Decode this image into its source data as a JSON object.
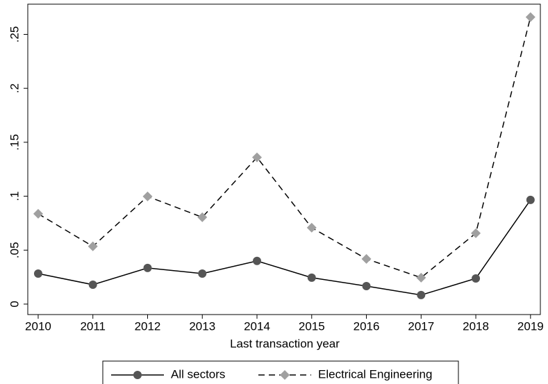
{
  "chart_data": {
    "type": "line",
    "x_label": "Last transaction year",
    "x": [
      2010,
      2011,
      2012,
      2013,
      2014,
      2015,
      2016,
      2017,
      2018,
      2019
    ],
    "series": [
      {
        "name": "All sectors",
        "color": "#555555",
        "line_color": "#000000",
        "line_style": "solid",
        "marker": "circle",
        "values": [
          0.0283,
          0.018,
          0.0335,
          0.0283,
          0.04,
          0.0245,
          0.0167,
          0.0084,
          0.0238,
          0.0966
        ]
      },
      {
        "name": "Electrical Engineering",
        "color": "#a0a0a0",
        "line_color": "#000000",
        "line_style": "dashed",
        "marker": "diamond",
        "values": [
          0.0837,
          0.0535,
          0.0998,
          0.0805,
          0.136,
          0.0708,
          0.0419,
          0.0245,
          0.0657,
          0.266
        ]
      }
    ],
    "xlim": [
      2009.81,
      2019.18
    ],
    "xticks": [
      2010,
      2011,
      2012,
      2013,
      2014,
      2015,
      2016,
      2017,
      2018,
      2019
    ],
    "ylim": [
      -0.0097,
      0.278
    ],
    "yticks": [
      0,
      {
        "value": 0.05,
        "label": ".05"
      },
      {
        "value": 0.1,
        "label": ".1"
      },
      {
        "value": 0.15,
        "label": ".15"
      },
      {
        "value": 0.2,
        "label": ".2"
      },
      {
        "value": 0.25,
        "label": ".25"
      }
    ],
    "grid": false,
    "legend_position": "bottom"
  }
}
